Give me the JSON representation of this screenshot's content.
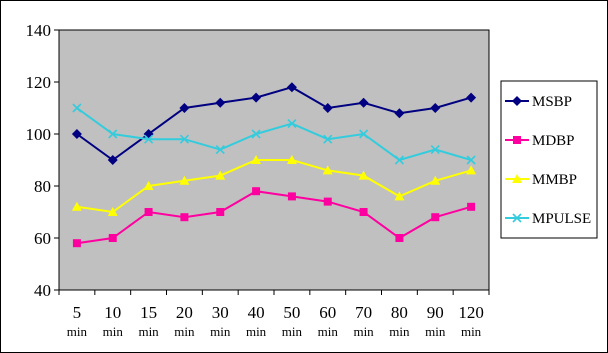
{
  "chart_data": {
    "type": "line",
    "title": "",
    "xlabel": "",
    "ylabel": "",
    "categories": [
      {
        "value": "5",
        "unit": "min"
      },
      {
        "value": "10",
        "unit": "min"
      },
      {
        "value": "15",
        "unit": "min"
      },
      {
        "value": "20",
        "unit": "min"
      },
      {
        "value": "30",
        "unit": "min"
      },
      {
        "value": "40",
        "unit": "min"
      },
      {
        "value": "50",
        "unit": "min"
      },
      {
        "value": "60",
        "unit": "min"
      },
      {
        "value": "70",
        "unit": "min"
      },
      {
        "value": "80",
        "unit": "min"
      },
      {
        "value": "90",
        "unit": "min"
      },
      {
        "value": "120",
        "unit": "min"
      }
    ],
    "ylim": [
      40,
      140
    ],
    "yticks": [
      "40",
      "60",
      "80",
      "100",
      "120",
      "140"
    ],
    "grid": false,
    "plot_background": "#c0c0c0",
    "legend_position": "right",
    "series": [
      {
        "name": "MSBP",
        "color": "#000080",
        "marker": "diamond",
        "values": [
          100,
          90,
          100,
          110,
          112,
          114,
          118,
          110,
          112,
          108,
          110,
          114
        ]
      },
      {
        "name": "MDBP",
        "color": "#ff00a0",
        "marker": "square",
        "values": [
          58,
          60,
          70,
          68,
          70,
          78,
          76,
          74,
          70,
          60,
          68,
          72
        ]
      },
      {
        "name": "MMBP",
        "color": "#ffff00",
        "marker": "triangle",
        "values": [
          72,
          70,
          80,
          82,
          84,
          90,
          90,
          86,
          84,
          76,
          82,
          86
        ]
      },
      {
        "name": "MPULSE",
        "color": "#33ccdd",
        "marker": "x",
        "values": [
          110,
          100,
          98,
          98,
          94,
          100,
          104,
          98,
          100,
          90,
          94,
          90
        ]
      }
    ]
  }
}
